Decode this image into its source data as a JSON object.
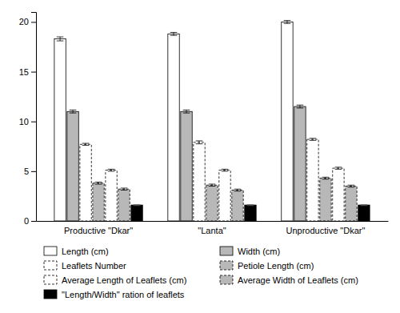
{
  "chart_data": {
    "type": "bar",
    "categories": [
      "Productive \"Dkar\"",
      "\"Lanta\"",
      "Unproductive \"Dkar\""
    ],
    "series": [
      {
        "name": "Length (cm)",
        "values": [
          18.3,
          18.8,
          20.0
        ],
        "errors": [
          0.2,
          0.15,
          0.15
        ],
        "color": "white",
        "line_style": "solid"
      },
      {
        "name": "Width (cm)",
        "values": [
          11.0,
          11.0,
          11.5
        ],
        "errors": [
          0.15,
          0.15,
          0.15
        ],
        "color": "#b8b8b8",
        "line_style": "solid"
      },
      {
        "name": "Leaflets Number",
        "values": [
          7.7,
          7.9,
          8.2
        ],
        "errors": [
          0.1,
          0.15,
          0.1
        ],
        "color": "white",
        "line_style": "dashed"
      },
      {
        "name": "Petiole Length (cm)",
        "values": [
          3.8,
          3.6,
          4.3
        ],
        "errors": [
          0.1,
          0.1,
          0.1
        ],
        "color": "#b8b8b8",
        "line_style": "dashed"
      },
      {
        "name": "Average Length of Leaflets (cm)",
        "values": [
          5.1,
          5.1,
          5.3
        ],
        "errors": [
          0.1,
          0.1,
          0.1
        ],
        "color": "white",
        "line_style": "dashed"
      },
      {
        "name": "Average Width of Leaflets (cm)",
        "values": [
          3.2,
          3.1,
          3.5
        ],
        "errors": [
          0.1,
          0.1,
          0.1
        ],
        "color": "#b8b8b8",
        "line_style": "dashed"
      },
      {
        "name": "\"Length/Width\" ration of leaflets",
        "values": [
          1.6,
          1.6,
          1.6
        ],
        "errors": [
          0.05,
          0.05,
          0.05
        ],
        "color": "black",
        "line_style": "solid"
      }
    ],
    "ylim": [
      0,
      21
    ],
    "yticks": [
      0,
      5,
      10,
      15,
      20
    ],
    "grid": false,
    "legend": "bottom"
  }
}
